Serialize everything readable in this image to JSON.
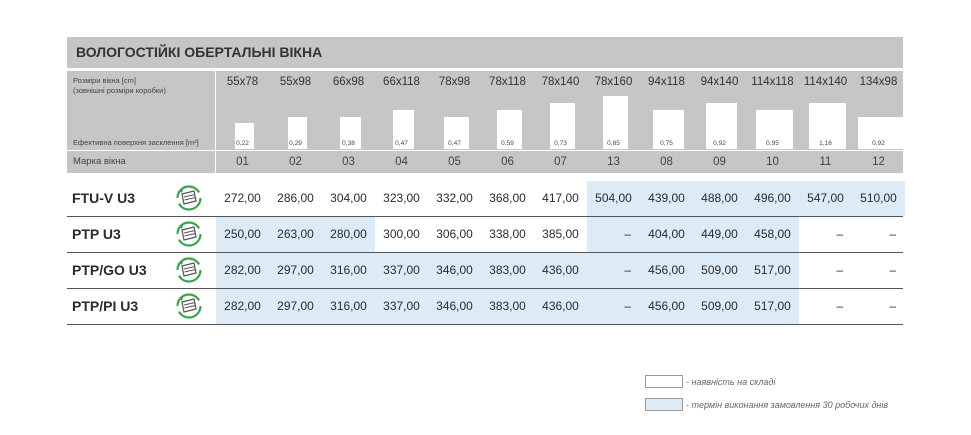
{
  "title": "ВОЛОГОСТІЙКІ ОБЕРТАЛЬНІ ВІКНА",
  "header": {
    "size_label": "Розміри вікна [cm]",
    "size_sublabel": "(зовнішні розміри коробки)",
    "area_label": "Ефективна поверхня засклення [m²]",
    "mark_label": "Марка вікна"
  },
  "columns": [
    {
      "size": "55x78",
      "area": "0,22",
      "area_value": 0.22,
      "mark": "01",
      "window_w_cm": 55,
      "window_h_cm": 78
    },
    {
      "size": "55x98",
      "area": "0,29",
      "area_value": 0.29,
      "mark": "02",
      "window_w_cm": 55,
      "window_h_cm": 98
    },
    {
      "size": "66x98",
      "area": "0,38",
      "area_value": 0.38,
      "mark": "03",
      "window_w_cm": 66,
      "window_h_cm": 98
    },
    {
      "size": "66x118",
      "area": "0,47",
      "area_value": 0.47,
      "mark": "04",
      "window_w_cm": 66,
      "window_h_cm": 118
    },
    {
      "size": "78x98",
      "area": "0,47",
      "area_value": 0.47,
      "mark": "05",
      "window_w_cm": 78,
      "window_h_cm": 98
    },
    {
      "size": "78x118",
      "area": "0,59",
      "area_value": 0.59,
      "mark": "06",
      "window_w_cm": 78,
      "window_h_cm": 118
    },
    {
      "size": "78x140",
      "area": "0,73",
      "area_value": 0.73,
      "mark": "07",
      "window_w_cm": 78,
      "window_h_cm": 140
    },
    {
      "size": "78x160",
      "area": "0,85",
      "area_value": 0.85,
      "mark": "13",
      "window_w_cm": 78,
      "window_h_cm": 160
    },
    {
      "size": "94x118",
      "area": "0,75",
      "area_value": 0.75,
      "mark": "08",
      "window_w_cm": 94,
      "window_h_cm": 118
    },
    {
      "size": "94x140",
      "area": "0,92",
      "area_value": 0.92,
      "mark": "09",
      "window_w_cm": 94,
      "window_h_cm": 140
    },
    {
      "size": "114x118",
      "area": "0,95",
      "area_value": 0.95,
      "mark": "10",
      "window_w_cm": 114,
      "window_h_cm": 118
    },
    {
      "size": "114x140",
      "area": "1,16",
      "area_value": 1.16,
      "mark": "11",
      "window_w_cm": 114,
      "window_h_cm": 140
    },
    {
      "size": "134x98",
      "area": "0,92",
      "area_value": 0.92,
      "mark": "12",
      "window_w_cm": 134,
      "window_h_cm": 98
    }
  ],
  "rows": [
    {
      "name": "FTU-V U3",
      "icon": "pivot-window-icon",
      "cells": [
        "272,00",
        "286,00",
        "304,00",
        "323,00",
        "332,00",
        "368,00",
        "417,00",
        "504,00",
        "439,00",
        "488,00",
        "496,00",
        "547,00",
        "510,00"
      ],
      "on_order": [
        false,
        false,
        false,
        false,
        false,
        false,
        false,
        true,
        true,
        true,
        true,
        true,
        true
      ]
    },
    {
      "name": "PTP U3",
      "icon": "pivot-window-icon",
      "cells": [
        "250,00",
        "263,00",
        "280,00",
        "300,00",
        "306,00",
        "338,00",
        "385,00",
        "–",
        "404,00",
        "449,00",
        "458,00",
        "–",
        "–"
      ],
      "on_order": [
        true,
        true,
        true,
        false,
        false,
        false,
        false,
        true,
        true,
        true,
        true,
        false,
        false
      ]
    },
    {
      "name": "PTP/GO U3",
      "icon": "pivot-window-icon",
      "cells": [
        "282,00",
        "297,00",
        "316,00",
        "337,00",
        "346,00",
        "383,00",
        "436,00",
        "–",
        "456,00",
        "509,00",
        "517,00",
        "–",
        "–"
      ],
      "on_order": [
        true,
        true,
        true,
        true,
        true,
        true,
        true,
        true,
        true,
        true,
        true,
        false,
        false
      ]
    },
    {
      "name": "PTP/PI U3",
      "icon": "pivot-window-icon",
      "cells": [
        "282,00",
        "297,00",
        "316,00",
        "337,00",
        "346,00",
        "383,00",
        "436,00",
        "–",
        "456,00",
        "509,00",
        "517,00",
        "–",
        "–"
      ],
      "on_order": [
        true,
        true,
        true,
        true,
        true,
        true,
        true,
        true,
        true,
        true,
        true,
        false,
        false
      ]
    }
  ],
  "legend": {
    "in_stock_label": "- наявність на складі",
    "in_stock_color": "#ffffff",
    "on_order_label": "- термін виконання замовлення 30 робочих днів",
    "on_order_color": "#dcebf6"
  },
  "colors": {
    "header_gray": "#c6c6c6",
    "icon_green": "#3aa54a"
  }
}
